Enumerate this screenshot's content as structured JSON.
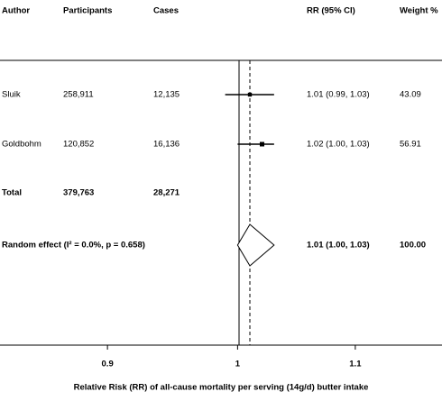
{
  "chart_data": {
    "type": "forest",
    "columns": [
      "Author",
      "Participants",
      "Cases",
      "RR (95% CI)",
      "Weight %"
    ],
    "studies": [
      {
        "author": "Sluik",
        "participants": "258,911",
        "cases": "12,135",
        "rr": 1.01,
        "lo": 0.99,
        "hi": 1.03,
        "rr_label": "1.01 (0.99, 1.03)",
        "weight": 43.09
      },
      {
        "author": "Goldbohm",
        "participants": "120,852",
        "cases": "16,136",
        "rr": 1.02,
        "lo": 1.0,
        "hi": 1.03,
        "rr_label": "1.02 (1.00, 1.03)",
        "weight": 56.91
      }
    ],
    "total": {
      "label": "Total",
      "participants": "379,763",
      "cases": "28,271"
    },
    "pooled": {
      "label": "Random effect (I² = 0.0%, p = 0.658)",
      "rr": 1.01,
      "lo": 1.0,
      "hi": 1.03,
      "rr_label": "1.01 (1.00, 1.03)",
      "weight": {
        "value": 100,
        "label": "100.00"
      }
    },
    "x_label": "Relative Risk (RR) of all-cause mortality per serving (14g/d) butter intake",
    "xscale": "log",
    "xlim": [
      0.825,
      1.18
    ],
    "xticks": [
      0.9,
      1,
      1.1
    ]
  }
}
